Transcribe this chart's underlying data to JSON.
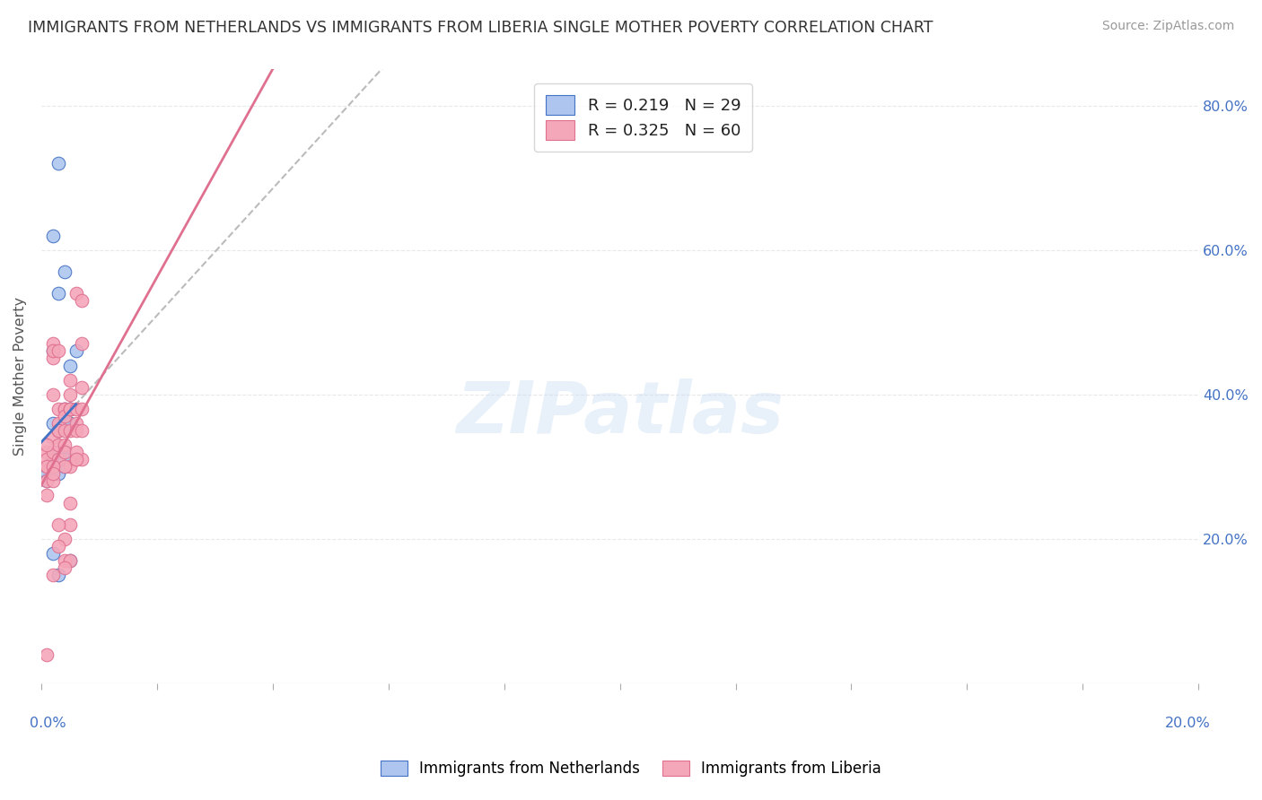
{
  "title": "IMMIGRANTS FROM NETHERLANDS VS IMMIGRANTS FROM LIBERIA SINGLE MOTHER POVERTY CORRELATION CHART",
  "source": "Source: ZipAtlas.com",
  "ylabel": "Single Mother Poverty",
  "R_netherlands": 0.219,
  "N_netherlands": 29,
  "R_liberia": 0.325,
  "N_liberia": 60,
  "color_netherlands": "#aec6ef",
  "color_liberia": "#f4a7b9",
  "line_netherlands": "#4472c4",
  "line_liberia": "#e07090",
  "line_dashed": "#bbbbbb",
  "watermark": "ZIPatlas",
  "xlim": [
    0.0,
    0.2
  ],
  "ylim": [
    0.0,
    0.85
  ],
  "background_color": "#ffffff",
  "grid_color": "#e8e8e8",
  "nl_x": [
    0.001,
    0.002,
    0.001,
    0.003,
    0.002,
    0.004,
    0.003,
    0.002,
    0.004,
    0.005,
    0.003,
    0.002,
    0.004,
    0.004,
    0.003,
    0.005,
    0.005,
    0.003,
    0.002,
    0.004,
    0.003,
    0.004,
    0.005,
    0.006,
    0.004,
    0.005,
    0.002,
    0.003,
    0.003
  ],
  "nl_y": [
    0.29,
    0.31,
    0.28,
    0.32,
    0.46,
    0.57,
    0.54,
    0.62,
    0.38,
    0.38,
    0.35,
    0.36,
    0.36,
    0.32,
    0.31,
    0.44,
    0.36,
    0.31,
    0.29,
    0.32,
    0.29,
    0.3,
    0.38,
    0.46,
    0.31,
    0.17,
    0.18,
    0.15,
    0.72
  ],
  "lb_x": [
    0.001,
    0.001,
    0.001,
    0.002,
    0.001,
    0.002,
    0.001,
    0.002,
    0.002,
    0.003,
    0.002,
    0.003,
    0.002,
    0.003,
    0.003,
    0.002,
    0.003,
    0.004,
    0.003,
    0.004,
    0.003,
    0.004,
    0.004,
    0.005,
    0.004,
    0.005,
    0.004,
    0.005,
    0.005,
    0.005,
    0.005,
    0.006,
    0.006,
    0.006,
    0.006,
    0.007,
    0.006,
    0.007,
    0.007,
    0.007,
    0.007,
    0.004,
    0.005,
    0.004,
    0.005,
    0.006,
    0.007,
    0.004,
    0.005,
    0.006,
    0.003,
    0.004,
    0.003,
    0.002,
    0.002,
    0.001,
    0.001,
    0.001,
    0.002,
    0.002
  ],
  "lb_y": [
    0.3,
    0.28,
    0.32,
    0.45,
    0.26,
    0.47,
    0.31,
    0.46,
    0.34,
    0.46,
    0.4,
    0.36,
    0.32,
    0.35,
    0.33,
    0.3,
    0.38,
    0.38,
    0.35,
    0.38,
    0.31,
    0.37,
    0.33,
    0.38,
    0.35,
    0.38,
    0.32,
    0.4,
    0.35,
    0.42,
    0.3,
    0.54,
    0.36,
    0.35,
    0.31,
    0.53,
    0.38,
    0.41,
    0.35,
    0.38,
    0.31,
    0.3,
    0.25,
    0.17,
    0.17,
    0.32,
    0.47,
    0.16,
    0.22,
    0.31,
    0.22,
    0.2,
    0.19,
    0.15,
    0.28,
    0.04,
    0.3,
    0.33,
    0.3,
    0.29
  ]
}
